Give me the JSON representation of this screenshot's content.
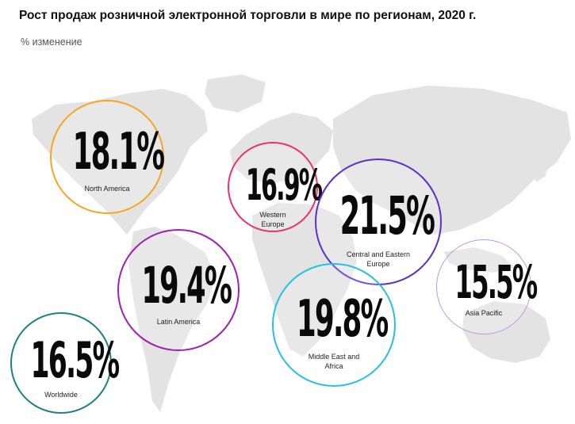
{
  "title": "Рост продаж розничной электронной торговли в мире по регионам, 2020 г.",
  "subtitle": "% изменение",
  "chart_data": {
    "type": "bubble-map",
    "unit": "%",
    "regions": [
      {
        "name": "North America",
        "label": "North America",
        "value": 18.1,
        "display": "18.1%",
        "color": "#f5a623"
      },
      {
        "name": "Western Europe",
        "label": "Western Europe",
        "value": 16.9,
        "display": "16.9%",
        "color": "#e8336e"
      },
      {
        "name": "Central and Eastern Europe",
        "label": "Central and Eastern Europe",
        "value": 21.5,
        "display": "21.5%",
        "color": "#5b2fc9"
      },
      {
        "name": "Latin America",
        "label": "Latin America",
        "value": 19.4,
        "display": "19.4%",
        "color": "#a020b0"
      },
      {
        "name": "Middle East and Africa",
        "label": "Middle East and Africa",
        "value": 19.8,
        "display": "19.8%",
        "color": "#27c0de"
      },
      {
        "name": "Asia Pacific",
        "label": "Asia Pacific",
        "value": 15.5,
        "display": "15.5%",
        "color": "#b59be0"
      },
      {
        "name": "Worldwide",
        "label": "Worldwide",
        "value": 16.5,
        "display": "16.5%",
        "color": "#1a7f8a"
      }
    ]
  }
}
